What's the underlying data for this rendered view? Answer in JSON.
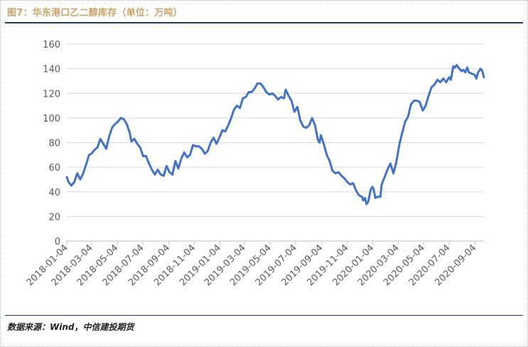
{
  "title": "图7：华东港口乙二醇库存（单位：万吨）",
  "source": "数据来源：Wind，中信建投期货",
  "colors": {
    "title": "#c8a46a",
    "line": "#4472c4",
    "rule": "#1f3864",
    "grid": "#d9d9d9",
    "axis_text": "#595959"
  },
  "chart_data": {
    "type": "line",
    "ylim": [
      0,
      160
    ],
    "yticks": [
      0,
      20,
      40,
      60,
      80,
      100,
      120,
      140,
      160
    ],
    "grid": true,
    "x_start": "2018-01-04",
    "x_end": "2020-09-25",
    "xticks": [
      "2018-01-04",
      "2018-03-04",
      "2018-05-04",
      "2018-07-04",
      "2018-09-04",
      "2018-11-04",
      "2019-01-04",
      "2019-03-04",
      "2019-05-04",
      "2019-07-04",
      "2019-09-04",
      "2019-11-04",
      "2020-01-04",
      "2020-03-04",
      "2020-05-04",
      "2020-07-04",
      "2020-09-04"
    ],
    "series": [
      {
        "name": "",
        "points": [
          [
            "2018-01-04",
            52
          ],
          [
            "2018-01-08",
            48
          ],
          [
            "2018-01-15",
            45
          ],
          [
            "2018-01-22",
            48
          ],
          [
            "2018-01-29",
            55
          ],
          [
            "2018-02-05",
            50
          ],
          [
            "2018-02-12",
            55
          ],
          [
            "2018-02-19",
            62
          ],
          [
            "2018-02-26",
            70
          ],
          [
            "2018-03-04",
            71
          ],
          [
            "2018-03-11",
            74
          ],
          [
            "2018-03-18",
            76
          ],
          [
            "2018-03-25",
            83
          ],
          [
            "2018-04-01",
            79
          ],
          [
            "2018-04-08",
            75
          ],
          [
            "2018-04-15",
            85
          ],
          [
            "2018-04-22",
            92
          ],
          [
            "2018-04-29",
            95
          ],
          [
            "2018-05-06",
            97
          ],
          [
            "2018-05-13",
            100
          ],
          [
            "2018-05-20",
            99
          ],
          [
            "2018-05-27",
            95
          ],
          [
            "2018-06-03",
            88
          ],
          [
            "2018-06-07",
            81
          ],
          [
            "2018-06-14",
            83
          ],
          [
            "2018-06-21",
            79
          ],
          [
            "2018-06-28",
            76
          ],
          [
            "2018-07-05",
            69
          ],
          [
            "2018-07-12",
            69
          ],
          [
            "2018-07-19",
            63
          ],
          [
            "2018-07-26",
            58
          ],
          [
            "2018-08-02",
            54
          ],
          [
            "2018-08-09",
            58
          ],
          [
            "2018-08-16",
            54
          ],
          [
            "2018-08-23",
            53
          ],
          [
            "2018-08-30",
            61
          ],
          [
            "2018-09-06",
            56
          ],
          [
            "2018-09-13",
            54
          ],
          [
            "2018-09-20",
            65
          ],
          [
            "2018-09-27",
            59
          ],
          [
            "2018-10-04",
            67
          ],
          [
            "2018-10-11",
            72
          ],
          [
            "2018-10-18",
            68
          ],
          [
            "2018-10-25",
            70
          ],
          [
            "2018-11-01",
            78
          ],
          [
            "2018-11-08",
            77
          ],
          [
            "2018-11-15",
            77
          ],
          [
            "2018-11-22",
            75
          ],
          [
            "2018-11-29",
            71
          ],
          [
            "2018-12-06",
            73
          ],
          [
            "2018-12-13",
            80
          ],
          [
            "2018-12-20",
            84
          ],
          [
            "2018-12-27",
            79
          ],
          [
            "2019-01-03",
            84
          ],
          [
            "2019-01-10",
            90
          ],
          [
            "2019-01-17",
            89
          ],
          [
            "2019-01-24",
            94
          ],
          [
            "2019-01-31",
            100
          ],
          [
            "2019-02-07",
            107
          ],
          [
            "2019-02-14",
            110
          ],
          [
            "2019-02-21",
            108
          ],
          [
            "2019-02-28",
            116
          ],
          [
            "2019-03-07",
            117
          ],
          [
            "2019-03-14",
            121
          ],
          [
            "2019-03-21",
            121
          ],
          [
            "2019-03-28",
            124
          ],
          [
            "2019-04-04",
            128
          ],
          [
            "2019-04-11",
            128
          ],
          [
            "2019-04-18",
            125
          ],
          [
            "2019-04-25",
            121
          ],
          [
            "2019-05-02",
            119
          ],
          [
            "2019-05-09",
            120
          ],
          [
            "2019-05-16",
            118
          ],
          [
            "2019-05-23",
            115
          ],
          [
            "2019-05-30",
            117
          ],
          [
            "2019-06-06",
            116
          ],
          [
            "2019-06-10",
            123
          ],
          [
            "2019-06-17",
            118
          ],
          [
            "2019-06-24",
            114
          ],
          [
            "2019-07-01",
            105
          ],
          [
            "2019-07-08",
            109
          ],
          [
            "2019-07-15",
            98
          ],
          [
            "2019-07-22",
            93
          ],
          [
            "2019-07-29",
            92
          ],
          [
            "2019-08-05",
            94
          ],
          [
            "2019-08-12",
            100
          ],
          [
            "2019-08-19",
            94
          ],
          [
            "2019-08-26",
            82
          ],
          [
            "2019-08-30",
            80
          ],
          [
            "2019-09-02",
            86
          ],
          [
            "2019-09-09",
            79
          ],
          [
            "2019-09-16",
            70
          ],
          [
            "2019-09-23",
            65
          ],
          [
            "2019-09-30",
            57
          ],
          [
            "2019-10-07",
            55
          ],
          [
            "2019-10-14",
            56
          ],
          [
            "2019-10-21",
            53
          ],
          [
            "2019-10-28",
            51
          ],
          [
            "2019-11-04",
            48
          ],
          [
            "2019-11-11",
            46
          ],
          [
            "2019-11-18",
            47
          ],
          [
            "2019-11-25",
            41
          ],
          [
            "2019-12-02",
            37
          ],
          [
            "2019-12-09",
            36
          ],
          [
            "2019-12-12",
            33
          ],
          [
            "2019-12-16",
            35
          ],
          [
            "2019-12-20",
            30
          ],
          [
            "2019-12-24",
            32
          ],
          [
            "2019-12-30",
            42
          ],
          [
            "2020-01-03",
            44
          ],
          [
            "2020-01-06",
            42
          ],
          [
            "2020-01-10",
            35
          ],
          [
            "2020-01-16",
            36
          ],
          [
            "2020-01-22",
            36
          ],
          [
            "2020-01-25",
            46
          ],
          [
            "2020-02-01",
            52
          ],
          [
            "2020-02-08",
            58
          ],
          [
            "2020-02-15",
            63
          ],
          [
            "2020-02-22",
            55
          ],
          [
            "2020-02-29",
            64
          ],
          [
            "2020-03-07",
            78
          ],
          [
            "2020-03-14",
            88
          ],
          [
            "2020-03-21",
            97
          ],
          [
            "2020-03-28",
            101
          ],
          [
            "2020-04-04",
            111
          ],
          [
            "2020-04-11",
            114
          ],
          [
            "2020-04-18",
            114
          ],
          [
            "2020-04-25",
            113
          ],
          [
            "2020-05-02",
            106
          ],
          [
            "2020-05-09",
            110
          ],
          [
            "2020-05-16",
            118
          ],
          [
            "2020-05-23",
            125
          ],
          [
            "2020-05-30",
            127
          ],
          [
            "2020-06-06",
            131
          ],
          [
            "2020-06-13",
            129
          ],
          [
            "2020-06-20",
            132
          ],
          [
            "2020-06-27",
            129
          ],
          [
            "2020-07-04",
            133
          ],
          [
            "2020-07-08",
            131
          ],
          [
            "2020-07-14",
            142
          ],
          [
            "2020-07-18",
            141
          ],
          [
            "2020-07-22",
            143
          ],
          [
            "2020-07-28",
            140
          ],
          [
            "2020-08-03",
            138
          ],
          [
            "2020-08-07",
            139
          ],
          [
            "2020-08-12",
            137
          ],
          [
            "2020-08-16",
            141
          ],
          [
            "2020-08-20",
            137
          ],
          [
            "2020-08-27",
            136
          ],
          [
            "2020-09-03",
            135
          ],
          [
            "2020-09-07",
            132
          ],
          [
            "2020-09-11",
            137
          ],
          [
            "2020-09-17",
            140
          ],
          [
            "2020-09-21",
            138
          ],
          [
            "2020-09-25",
            133
          ]
        ]
      }
    ]
  }
}
